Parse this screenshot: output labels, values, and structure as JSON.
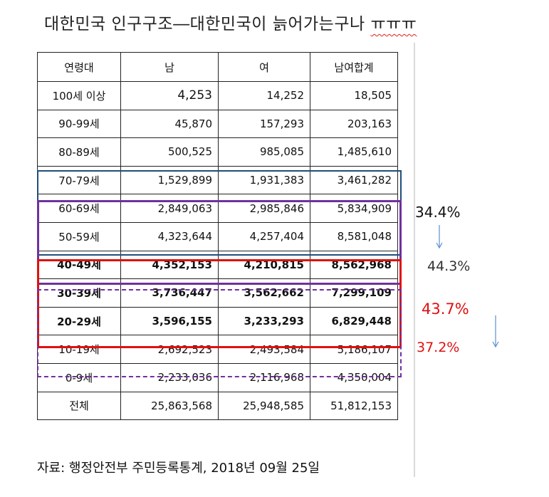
{
  "title": {
    "main": "대한민국 인구구조―대한민국이 늙어가는구나",
    "emoticon": "ㅠㅠㅠ"
  },
  "table": {
    "headers": [
      "연령대",
      "남",
      "여",
      "남여합계"
    ],
    "rows": [
      [
        "100세 이상",
        "4,253",
        "14,252",
        "18,505"
      ],
      [
        "90-99세",
        "45,870",
        "157,293",
        "203,163"
      ],
      [
        "80-89세",
        "500,525",
        "985,085",
        "1,485,610"
      ],
      [
        "70-79세",
        "1,529,899",
        "1,931,383",
        "3,461,282"
      ],
      [
        "60-69세",
        "2,849,063",
        "2,985,846",
        "5,834,909"
      ],
      [
        "50-59세",
        "4,323,644",
        "4,257,404",
        "8,581,048"
      ],
      [
        "40-49세",
        "4,352,153",
        "4,210,815",
        "8,562,968"
      ],
      [
        "30-39세",
        "3,736,447",
        "3,562,662",
        "7,299,109"
      ],
      [
        "20-29세",
        "3,596,155",
        "3,233,293",
        "6,829,448"
      ],
      [
        "10-19세",
        "2,692,523",
        "2,493,584",
        "5,186,107"
      ],
      [
        "0-9세",
        "2,233,036",
        "2,116,968",
        "4,350,004"
      ],
      [
        "전체",
        "25,863,568",
        "25,948,585",
        "51,812,153"
      ]
    ]
  },
  "annotations": {
    "pct_60_69": "34.4%",
    "pct_50_79": "44.3%",
    "pct_20_49": "43.7%",
    "pct_10_39": "37.2%"
  },
  "colors": {
    "blue_box": "#1f4e79",
    "purple_box": "#7030a0",
    "red_box": "#e01010",
    "arrow": "#5b8fd0"
  },
  "source": "자료: 행정안전부 주민등록통계, 2018년 09월 25일"
}
